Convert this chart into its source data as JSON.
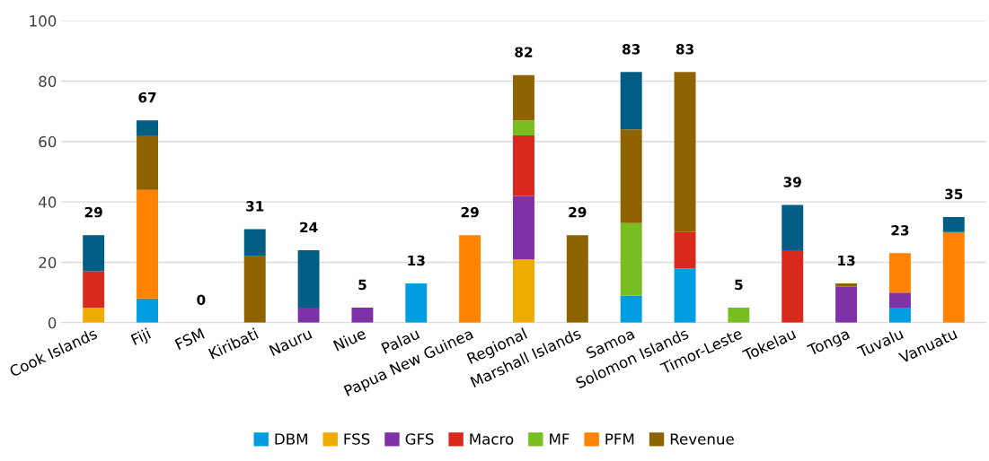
{
  "chart_data": {
    "type": "bar",
    "stacked": true,
    "categories": [
      "Cook Islands",
      "Fiji",
      "FSM",
      "Kiribati",
      "Nauru",
      "Niue",
      "Palau",
      "Papua New Guinea",
      "Regional",
      "Marshall Islands",
      "Samoa",
      "Solomon Islands",
      "Timor-Leste",
      "Tokelau",
      "Tonga",
      "Tuvalu",
      "Vanuatu"
    ],
    "series": [
      {
        "name": "DBM",
        "color": "#009ee0",
        "values": [
          0,
          8,
          0,
          0,
          0,
          0,
          13,
          0,
          0,
          0,
          9,
          18,
          0,
          0,
          0,
          5,
          0
        ]
      },
      {
        "name": "FSS",
        "color": "#f0ab00",
        "values": [
          5,
          0,
          0,
          0,
          0,
          0,
          0,
          0,
          21,
          0,
          0,
          0,
          0,
          0,
          0,
          0,
          0
        ]
      },
      {
        "name": "GFS",
        "color": "#7f31a8",
        "values": [
          0,
          0,
          0,
          0,
          5,
          5,
          0,
          0,
          21,
          0,
          0,
          0,
          0,
          0,
          12,
          5,
          0
        ]
      },
      {
        "name": "Macro",
        "color": "#d9291c",
        "values": [
          12,
          0,
          0,
          0,
          0,
          0,
          0,
          0,
          20,
          0,
          0,
          12,
          0,
          24,
          0,
          0,
          0
        ]
      },
      {
        "name": "MF",
        "color": "#78be20",
        "values": [
          0,
          0,
          0,
          0,
          0,
          0,
          0,
          0,
          5,
          0,
          24,
          0,
          5,
          0,
          0,
          0,
          0
        ]
      },
      {
        "name": "PFM",
        "color": "#ff8200",
        "values": [
          0,
          36,
          0,
          0,
          0,
          0,
          0,
          29,
          0,
          0,
          0,
          0,
          0,
          0,
          0,
          13,
          30
        ]
      },
      {
        "name": "Revenue",
        "color": "#8f6400",
        "values": [
          0,
          18,
          0,
          22,
          0,
          0,
          0,
          0,
          15,
          29,
          31,
          53,
          0,
          0,
          1,
          0,
          0
        ]
      },
      {
        "color": "#005e85",
        "values": [
          12,
          5,
          0,
          9,
          19,
          0,
          0,
          0,
          0,
          0,
          19,
          0,
          0,
          15,
          0,
          0,
          5
        ]
      }
    ],
    "totals": [
      "29",
      "67",
      "0",
      "31",
      "24",
      "5",
      "13",
      "29",
      "82",
      "29",
      "83",
      "83",
      "5",
      "39",
      "13",
      "23",
      "35"
    ],
    "ylim": [
      0,
      100
    ],
    "yticks": [
      0,
      20,
      40,
      60,
      80,
      100
    ],
    "grid": "y",
    "legend": "bottom"
  }
}
